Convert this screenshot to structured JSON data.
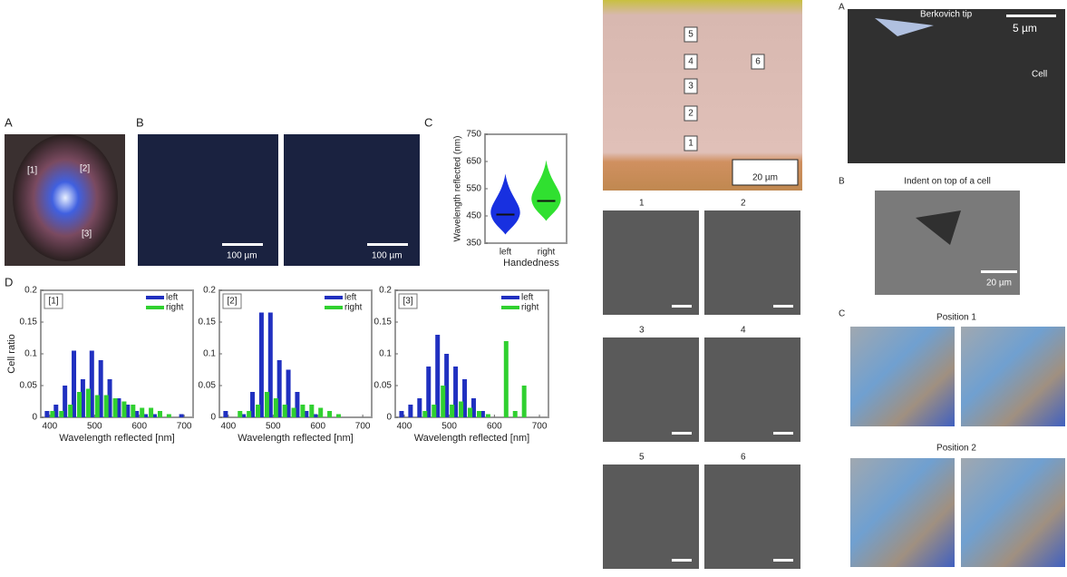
{
  "panels": {
    "a": "A",
    "b": "B",
    "c": "C",
    "d": "D"
  },
  "images": {
    "scale_b1": "100 µm",
    "scale_b2": "100 µm",
    "photo_labels": [
      "[1]",
      "[2]",
      "[3]"
    ],
    "tissue_layers": [
      "5",
      "4",
      "3",
      "2",
      "1",
      "6"
    ],
    "tissue_scale": "20 µm",
    "sem_labels": [
      "1",
      "2",
      "3",
      "4",
      "5",
      "6"
    ],
    "right_panels": [
      "A",
      "B",
      "C"
    ],
    "tip": "Berkovich tip",
    "tip_scale": "5 µm",
    "cell": "Cell",
    "indent_title": "Indent on top of a cell",
    "indent_scale": "20 µm",
    "position1": "Position 1",
    "position2": "Position 2"
  },
  "chart_data": [
    {
      "type": "bar",
      "panel": "[1]",
      "ylabel": "Cell ratio",
      "xlabel": "Wavelength reflected [nm]",
      "x": [
        400,
        420,
        440,
        460,
        480,
        500,
        520,
        540,
        560,
        580,
        600,
        620,
        640,
        660,
        680,
        700
      ],
      "series": [
        {
          "name": "left",
          "color": "#2030c0",
          "values": [
            0.01,
            0.02,
            0.05,
            0.105,
            0.06,
            0.105,
            0.09,
            0.06,
            0.03,
            0.02,
            0.01,
            0.005,
            0.005,
            0,
            0,
            0.005
          ]
        },
        {
          "name": "right",
          "color": "#30d030",
          "values": [
            0.01,
            0.01,
            0.02,
            0.04,
            0.045,
            0.035,
            0.035,
            0.03,
            0.025,
            0.02,
            0.015,
            0.015,
            0.01,
            0.005,
            0,
            0
          ]
        }
      ],
      "xlim": [
        380,
        720
      ],
      "xticks": [
        400,
        500,
        600,
        700
      ],
      "ylim": [
        0,
        0.2
      ],
      "yticks": [
        0,
        0.05,
        0.1,
        0.15,
        0.2
      ]
    },
    {
      "type": "bar",
      "panel": "[2]",
      "xlabel": "Wavelength reflected [nm]",
      "x": [
        400,
        420,
        440,
        460,
        480,
        500,
        520,
        540,
        560,
        580,
        600,
        620,
        640,
        660,
        680,
        700
      ],
      "series": [
        {
          "name": "left",
          "color": "#2030c0",
          "values": [
            0.01,
            0,
            0.005,
            0.04,
            0.165,
            0.165,
            0.09,
            0.075,
            0.04,
            0.01,
            0.005,
            0,
            0,
            0,
            0,
            0
          ]
        },
        {
          "name": "right",
          "color": "#30d030",
          "values": [
            0,
            0.01,
            0.01,
            0.02,
            0.04,
            0.03,
            0.02,
            0.015,
            0.02,
            0.02,
            0.015,
            0.01,
            0.005,
            0,
            0,
            0
          ]
        }
      ],
      "xlim": [
        380,
        720
      ],
      "xticks": [
        400,
        500,
        600,
        700
      ],
      "ylim": [
        0,
        0.2
      ],
      "yticks": [
        0,
        0.05,
        0.1,
        0.15,
        0.2
      ]
    },
    {
      "type": "bar",
      "panel": "[3]",
      "xlabel": "Wavelength reflected [nm]",
      "x": [
        400,
        420,
        440,
        460,
        480,
        500,
        520,
        540,
        560,
        580,
        600,
        620,
        640,
        660,
        680,
        700
      ],
      "series": [
        {
          "name": "left",
          "color": "#2030c0",
          "values": [
            0.01,
            0.02,
            0.03,
            0.08,
            0.13,
            0.1,
            0.08,
            0.06,
            0.03,
            0.01,
            0,
            0,
            0,
            0,
            0,
            0
          ]
        },
        {
          "name": "right",
          "color": "#30d030",
          "values": [
            0,
            0,
            0.01,
            0.02,
            0.05,
            0.02,
            0.025,
            0.015,
            0.01,
            0.005,
            0,
            0.12,
            0.01,
            0.05,
            0,
            0
          ]
        }
      ],
      "xlim": [
        380,
        720
      ],
      "xticks": [
        400,
        500,
        600,
        700
      ],
      "ylim": [
        0,
        0.2
      ],
      "yticks": [
        0,
        0.05,
        0.1,
        0.15,
        0.2
      ]
    },
    {
      "type": "violin",
      "ylabel": "Wavelength reflected (nm)",
      "xlabel": "Handedness",
      "categories": [
        "left",
        "right"
      ],
      "values": [
        455,
        505
      ],
      "colors": [
        "#1830e0",
        "#30e030"
      ],
      "ylim": [
        350,
        750
      ],
      "yticks": [
        350,
        450,
        550,
        650,
        750
      ]
    }
  ]
}
